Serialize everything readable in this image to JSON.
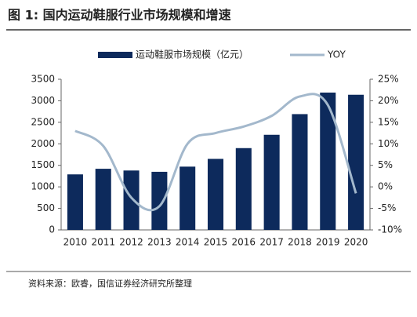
{
  "title": "图 1:  国内运动鞋服行业市场规模和增速",
  "source": "资料来源：欧睿，国信证券经济研究所整理",
  "chart_data": {
    "type": "bar-line",
    "categories": [
      "2010",
      "2011",
      "2012",
      "2013",
      "2014",
      "2015",
      "2016",
      "2017",
      "2018",
      "2019",
      "2020"
    ],
    "series": [
      {
        "name": "运动鞋服市场规模（亿元）",
        "color": "#0d2a5c",
        "type": "bar",
        "values": [
          1290,
          1420,
          1380,
          1350,
          1470,
          1650,
          1900,
          2210,
          2690,
          3190,
          3140
        ]
      },
      {
        "name": "YOY",
        "color": "#a3b8cc",
        "type": "line",
        "axis": "y2",
        "values": [
          13,
          9.5,
          -2.5,
          -4.5,
          10,
          12.5,
          14,
          16.5,
          21,
          19,
          -1.5
        ]
      }
    ],
    "ylim": [
      0,
      3500
    ],
    "yticks": [
      0,
      500,
      1000,
      1500,
      2000,
      2500,
      3000,
      3500
    ],
    "y2lim": [
      -10,
      25
    ],
    "y2ticks": [
      {
        "value": -10,
        "label": "-10%"
      },
      {
        "value": -5,
        "label": "-5%"
      },
      {
        "value": 0,
        "label": "0%"
      },
      {
        "value": 5,
        "label": "5%"
      },
      {
        "value": 10,
        "label": "10%"
      },
      {
        "value": 15,
        "label": "15%"
      },
      {
        "value": 20,
        "label": "20%"
      },
      {
        "value": 25,
        "label": "25%"
      }
    ]
  }
}
